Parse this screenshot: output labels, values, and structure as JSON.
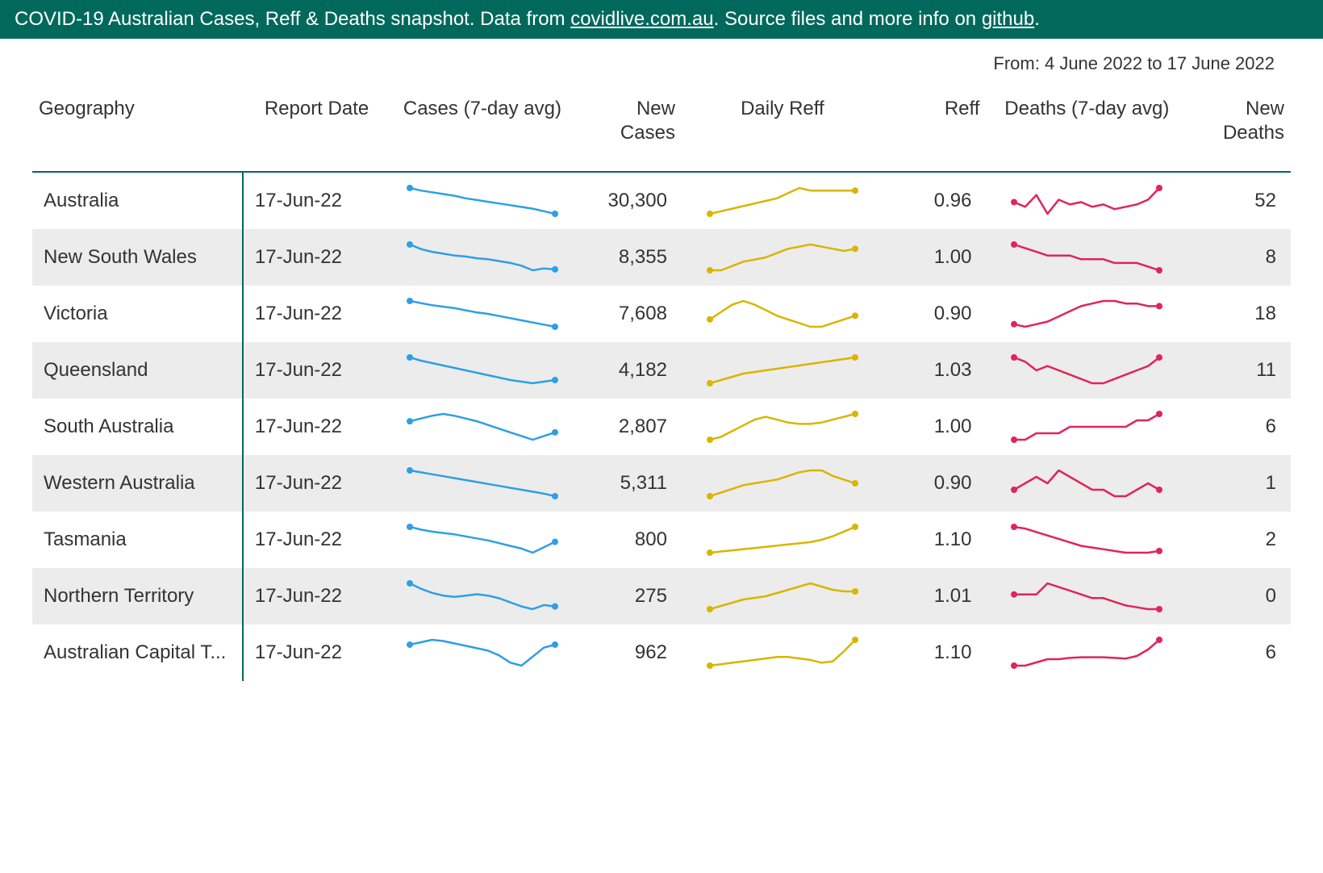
{
  "header": {
    "prefix": "COVID-19 Australian Cases, Reff & Deaths snapshot. Data from ",
    "link1_text": "covidlive.com.au",
    "middle": ". Source files and more info on ",
    "link2_text": "github",
    "suffix": ".",
    "bg_color": "#00695c",
    "text_color": "#ffffff",
    "font_size": 24
  },
  "date_range": {
    "label": "From: 4 June 2022 to 17 June 2022",
    "font_size": 22
  },
  "colors": {
    "accent": "#00695c",
    "row_alt_bg": "#ececec",
    "cases_line": "#2e9fe6",
    "reff_line": "#d9b500",
    "deaths_line": "#e0245e",
    "text": "#333333",
    "bg": "#ffffff"
  },
  "spark_style": {
    "width": 190,
    "height": 42,
    "line_width": 2.5,
    "dot_radius_start": 4,
    "dot_radius_end": 4
  },
  "columns": [
    {
      "key": "geography",
      "label": "Geography",
      "align": "left"
    },
    {
      "key": "report_date",
      "label": "Report Date",
      "align": "center"
    },
    {
      "key": "cases_spark",
      "label": "Cases (7-day avg)",
      "align": "center",
      "type": "sparkline",
      "color_key": "cases_line"
    },
    {
      "key": "new_cases",
      "label": "New Cases",
      "align": "right",
      "type": "number"
    },
    {
      "key": "reff_spark",
      "label": "Daily Reff",
      "align": "center",
      "type": "sparkline",
      "color_key": "reff_line"
    },
    {
      "key": "reff",
      "label": "Reff",
      "align": "right",
      "type": "decimal"
    },
    {
      "key": "deaths_spark",
      "label": "Deaths (7-day avg)",
      "align": "center",
      "type": "sparkline",
      "color_key": "deaths_line"
    },
    {
      "key": "new_deaths",
      "label": "New Deaths",
      "align": "right",
      "type": "number"
    }
  ],
  "rows": [
    {
      "geography": "Australia",
      "report_date": "17-Jun-22",
      "cases_spark": [
        100,
        97,
        95,
        93,
        91,
        88,
        86,
        84,
        82,
        80,
        78,
        76,
        73,
        70
      ],
      "new_cases": "30,300",
      "reff_spark": [
        0.9,
        0.91,
        0.92,
        0.93,
        0.94,
        0.95,
        0.96,
        0.98,
        1.0,
        0.99,
        0.99,
        0.99,
        0.99,
        0.99
      ],
      "reff": "0.96",
      "deaths_spark": [
        52,
        50,
        55,
        47,
        53,
        51,
        52,
        50,
        51,
        49,
        50,
        51,
        53,
        58
      ],
      "new_deaths": "52"
    },
    {
      "geography": "New South Wales",
      "report_date": "17-Jun-22",
      "cases_spark": [
        100,
        95,
        92,
        90,
        88,
        87,
        85,
        84,
        82,
        80,
        77,
        72,
        74,
        73
      ],
      "new_cases": "8,355",
      "reff_spark": [
        0.9,
        0.9,
        0.92,
        0.94,
        0.95,
        0.96,
        0.98,
        1.0,
        1.01,
        1.02,
        1.01,
        1.0,
        0.99,
        1.0
      ],
      "reff": "1.00",
      "deaths_spark": [
        15,
        14,
        13,
        12,
        12,
        12,
        11,
        11,
        11,
        10,
        10,
        10,
        9,
        8
      ],
      "new_deaths": "8"
    },
    {
      "geography": "Victoria",
      "report_date": "17-Jun-22",
      "cases_spark": [
        100,
        97,
        94,
        92,
        90,
        87,
        84,
        82,
        79,
        76,
        73,
        70,
        67,
        64
      ],
      "new_cases": "7,608",
      "reff_spark": [
        0.92,
        0.96,
        1.0,
        1.02,
        1.0,
        0.97,
        0.94,
        0.92,
        0.9,
        0.88,
        0.88,
        0.9,
        0.92,
        0.94
      ],
      "reff": "0.90",
      "deaths_spark": [
        12,
        11,
        12,
        13,
        15,
        17,
        19,
        20,
        21,
        21,
        20,
        20,
        19,
        19
      ],
      "new_deaths": "18"
    },
    {
      "geography": "Queensland",
      "report_date": "17-Jun-22",
      "cases_spark": [
        100,
        96,
        93,
        90,
        87,
        84,
        81,
        78,
        75,
        72,
        70,
        68,
        70,
        72
      ],
      "new_cases": "4,182",
      "reff_spark": [
        0.9,
        0.92,
        0.94,
        0.96,
        0.97,
        0.98,
        0.99,
        1.0,
        1.01,
        1.02,
        1.03,
        1.04,
        1.05,
        1.06
      ],
      "reff": "1.03",
      "deaths_spark": [
        13,
        12,
        10,
        11,
        10,
        9,
        8,
        7,
        7,
        8,
        9,
        10,
        11,
        13
      ],
      "new_deaths": "11"
    },
    {
      "geography": "South Australia",
      "report_date": "17-Jun-22",
      "cases_spark": [
        92,
        95,
        98,
        100,
        98,
        95,
        92,
        88,
        84,
        80,
        76,
        72,
        76,
        80
      ],
      "new_cases": "2,807",
      "reff_spark": [
        0.88,
        0.9,
        0.94,
        0.98,
        1.02,
        1.04,
        1.02,
        1.0,
        0.99,
        0.99,
        1.0,
        1.02,
        1.04,
        1.06
      ],
      "reff": "1.00",
      "deaths_spark": [
        3,
        3,
        4,
        4,
        4,
        5,
        5,
        5,
        5,
        5,
        5,
        6,
        6,
        7
      ],
      "new_deaths": "6"
    },
    {
      "geography": "Western Australia",
      "report_date": "17-Jun-22",
      "cases_spark": [
        100,
        97,
        94,
        91,
        88,
        85,
        82,
        79,
        76,
        73,
        70,
        67,
        64,
        60
      ],
      "new_cases": "5,311",
      "reff_spark": [
        0.86,
        0.88,
        0.9,
        0.92,
        0.93,
        0.94,
        0.95,
        0.97,
        0.99,
        1.0,
        1.0,
        0.97,
        0.95,
        0.93
      ],
      "reff": "0.90",
      "deaths_spark": [
        3,
        4,
        5,
        4,
        6,
        5,
        4,
        3,
        3,
        2,
        2,
        3,
        4,
        3
      ],
      "new_deaths": "1"
    },
    {
      "geography": "Tasmania",
      "report_date": "17-Jun-22",
      "cases_spark": [
        100,
        96,
        93,
        91,
        89,
        86,
        83,
        80,
        76,
        72,
        68,
        62,
        70,
        78
      ],
      "new_cases": "800",
      "reff_spark": [
        0.92,
        0.93,
        0.94,
        0.95,
        0.96,
        0.97,
        0.98,
        0.99,
        1.0,
        1.01,
        1.03,
        1.06,
        1.1,
        1.14
      ],
      "reff": "1.10",
      "deaths_spark": [
        3.5,
        3.4,
        3.2,
        3.0,
        2.8,
        2.6,
        2.4,
        2.3,
        2.2,
        2.1,
        2.0,
        2.0,
        2.0,
        2.1
      ],
      "new_deaths": "2"
    },
    {
      "geography": "Northern Territory",
      "report_date": "17-Jun-22",
      "cases_spark": [
        100,
        92,
        86,
        82,
        80,
        82,
        84,
        82,
        78,
        72,
        66,
        62,
        68,
        66
      ],
      "new_cases": "275",
      "reff_spark": [
        0.88,
        0.9,
        0.92,
        0.94,
        0.95,
        0.96,
        0.98,
        1.0,
        1.02,
        1.04,
        1.02,
        1.0,
        0.99,
        0.99
      ],
      "reff": "1.01",
      "deaths_spark": [
        0.5,
        0.5,
        0.5,
        0.8,
        0.7,
        0.6,
        0.5,
        0.4,
        0.4,
        0.3,
        0.2,
        0.15,
        0.1,
        0.1
      ],
      "new_deaths": "0"
    },
    {
      "geography": "Australian Capital T...",
      "report_date": "17-Jun-22",
      "cases_spark": [
        90,
        94,
        98,
        96,
        92,
        88,
        84,
        80,
        72,
        60,
        55,
        70,
        85,
        90
      ],
      "new_cases": "962",
      "reff_spark": [
        0.94,
        0.95,
        0.96,
        0.97,
        0.98,
        0.99,
        1.0,
        1.0,
        0.99,
        0.98,
        0.96,
        0.97,
        1.04,
        1.12
      ],
      "reff": "1.10",
      "deaths_spark": [
        2,
        2,
        2.5,
        3,
        3,
        3.2,
        3.3,
        3.3,
        3.3,
        3.2,
        3.1,
        3.5,
        4.5,
        6
      ],
      "new_deaths": "6"
    }
  ]
}
